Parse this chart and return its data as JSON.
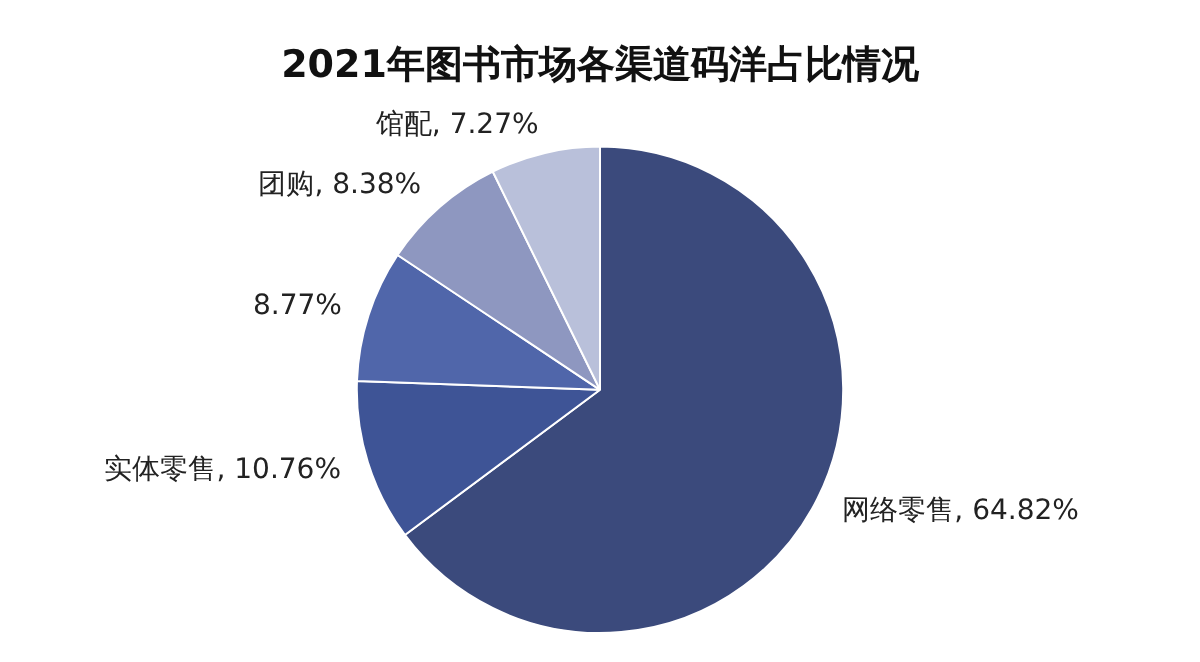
{
  "chart_data": {
    "type": "pie",
    "title": "2021年图书市场各渠道码洋占比情况",
    "categories": [
      "网络零售",
      "实体零售",
      null,
      "团购",
      "馆配"
    ],
    "values": [
      64.82,
      10.76,
      8.77,
      8.38,
      7.27
    ],
    "value_labels": [
      "64.82%",
      "10.76%",
      "8.77%",
      "8.38%",
      "7.27%"
    ],
    "colors": [
      "#3b4a7c",
      "#3e5496",
      "#5066aa",
      "#8e97c0",
      "#b9c0da"
    ],
    "legend": false
  }
}
